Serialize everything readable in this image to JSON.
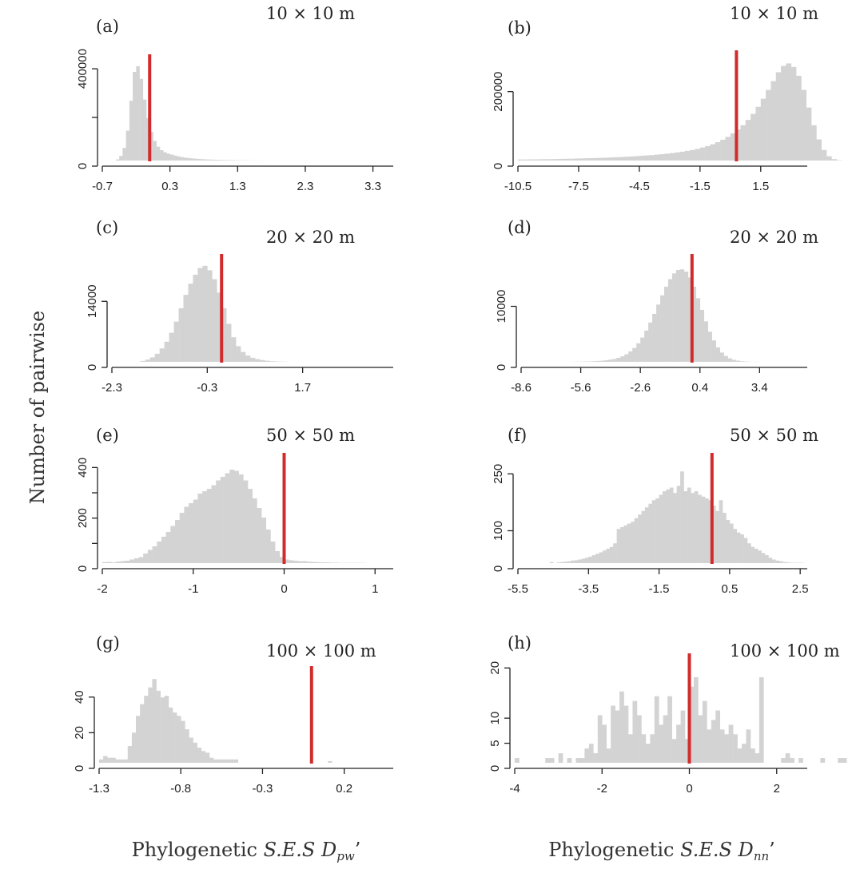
{
  "figure": {
    "ylabel": "Number of pairwise",
    "xlabel_left": {
      "prefix": "Phylogenetic ",
      "stat": "S.E.S D",
      "sub": "pw",
      "suffix": "’"
    },
    "xlabel_right": {
      "prefix": "Phylogenetic ",
      "stat": "S.E.S D",
      "sub": "nn",
      "suffix": "’"
    }
  },
  "colors": {
    "bars": "#d3d3d3",
    "observed_line": "#d22b2b",
    "axis": "#222222"
  },
  "chart_data": [
    {
      "id": "a",
      "type": "bar",
      "panel_label": "(a)",
      "scale_label": "10 × 10 m",
      "xlim": [
        -0.7,
        3.6
      ],
      "ylim": [
        0,
        420000
      ],
      "xticks": [
        -0.7,
        0.3,
        1.3,
        2.3,
        3.3
      ],
      "xtick_labels": [
        "-0.7",
        "0.3",
        "1.3",
        "2.3",
        "3.3"
      ],
      "yticks": [
        0,
        200000,
        400000
      ],
      "ytick_labels": [
        "0",
        "",
        "400000"
      ],
      "observed": 0.0,
      "bin_start": -0.5,
      "bin_width": 0.05,
      "counts": [
        5000,
        20000,
        55000,
        130000,
        260000,
        385000,
        410000,
        355000,
        265000,
        185000,
        125000,
        85000,
        60000,
        45000,
        36000,
        30000,
        26000,
        22000,
        18000,
        15000,
        12500,
        11000,
        9500,
        8200,
        7000,
        6000,
        5200,
        4500,
        4000,
        3500,
        3000,
        2600,
        2200,
        1900,
        1600,
        1400,
        1200,
        1000,
        800,
        650,
        500,
        400,
        320,
        250,
        200,
        150,
        120,
        100,
        80,
        60,
        50
      ]
    },
    {
      "id": "b",
      "type": "bar",
      "panel_label": "(b)",
      "scale_label": "10 × 10 m",
      "xlim": [
        -10.5,
        3.8
      ],
      "ylim": [
        0,
        285000
      ],
      "xticks": [
        -10.5,
        -7.5,
        -4.5,
        -1.5,
        1.5
      ],
      "xtick_labels": [
        "-10.5",
        "-7.5",
        "-4.5",
        "-1.5",
        "1.5"
      ],
      "yticks": [
        0,
        200000
      ],
      "ytick_labels": [
        "0",
        "200000"
      ],
      "observed": 0.3,
      "bin_start": -10.5,
      "bin_width": 0.25,
      "counts": [
        3000,
        3000,
        3200,
        3400,
        3600,
        3800,
        4000,
        4300,
        4600,
        4900,
        5200,
        5600,
        6000,
        6400,
        6800,
        7200,
        7700,
        8200,
        8800,
        9400,
        10000,
        10800,
        11600,
        12500,
        13500,
        14500,
        15500,
        16800,
        18000,
        19500,
        21000,
        23000,
        25000,
        27500,
        30000,
        33000,
        37000,
        41000,
        46000,
        52000,
        59000,
        67000,
        77000,
        88000,
        100000,
        115000,
        132000,
        152000,
        175000,
        200000,
        225000,
        250000,
        268000,
        275000,
        265000,
        240000,
        200000,
        150000,
        100000,
        60000,
        30000,
        12000,
        4000,
        1000
      ]
    },
    {
      "id": "c",
      "type": "bar",
      "panel_label": "(c)",
      "scale_label": "20 × 20 m",
      "xlim": [
        -2.3,
        3.6
      ],
      "ylim": [
        0,
        22000
      ],
      "xticks": [
        -2.3,
        -0.3,
        1.7
      ],
      "xtick_labels": [
        "-2.3",
        "-0.3",
        "1.7"
      ],
      "yticks": [
        0,
        14000
      ],
      "ytick_labels": [
        "0",
        "14000"
      ],
      "observed": 0.0,
      "bin_start": -1.7,
      "bin_width": 0.1,
      "counts": [
        200,
        500,
        1000,
        1800,
        3000,
        4500,
        6500,
        9000,
        12000,
        15000,
        17500,
        19500,
        21000,
        21500,
        20500,
        18500,
        15500,
        12000,
        8500,
        5500,
        3500,
        2200,
        1400,
        900,
        600,
        400,
        250,
        150,
        100,
        60,
        30
      ]
    },
    {
      "id": "d",
      "type": "bar",
      "panel_label": "(d)",
      "scale_label": "20 × 20 m",
      "xlim": [
        -8.6,
        5.8
      ],
      "ylim": [
        0,
        17000
      ],
      "xticks": [
        -8.6,
        -5.6,
        -2.6,
        0.4,
        3.4
      ],
      "xtick_labels": [
        "-8.6",
        "-5.6",
        "-2.6",
        "0.4",
        "3.4"
      ],
      "yticks": [
        0,
        10000
      ],
      "ytick_labels": [
        "0",
        "10000"
      ],
      "observed": 0.0,
      "bin_start": -6.0,
      "bin_width": 0.2,
      "counts": [
        20,
        30,
        40,
        60,
        80,
        110,
        150,
        200,
        280,
        380,
        500,
        700,
        950,
        1300,
        1800,
        2400,
        3200,
        4200,
        5400,
        6800,
        8300,
        9900,
        11500,
        13000,
        14300,
        15300,
        15900,
        16000,
        15600,
        14600,
        13000,
        11000,
        9000,
        7000,
        5200,
        3700,
        2500,
        1600,
        1000,
        600,
        350,
        200,
        110,
        60,
        30,
        15,
        8,
        4
      ]
    },
    {
      "id": "e",
      "type": "bar",
      "panel_label": "(e)",
      "scale_label": "50 × 50 m",
      "xlim": [
        -2,
        1.2
      ],
      "ylim": [
        0,
        420
      ],
      "xticks": [
        -2,
        -1,
        0,
        1
      ],
      "xtick_labels": [
        "-2",
        "-1",
        "0",
        "1"
      ],
      "yticks": [
        0,
        100,
        200,
        300,
        400
      ],
      "ytick_labels": [
        "0",
        "",
        "200",
        "",
        "400"
      ],
      "observed": 0.0,
      "bin_start": -2.0,
      "bin_width": 0.05,
      "counts": [
        4,
        5,
        3,
        6,
        8,
        10,
        15,
        20,
        25,
        40,
        55,
        70,
        90,
        110,
        130,
        155,
        180,
        210,
        235,
        250,
        265,
        290,
        300,
        310,
        325,
        345,
        360,
        375,
        390,
        385,
        370,
        345,
        310,
        270,
        230,
        190,
        140,
        90,
        50,
        25,
        15,
        12,
        10,
        8,
        8,
        6,
        5,
        4,
        3,
        3,
        2,
        2,
        1,
        1,
        1,
        1,
        1,
        1,
        0,
        0,
        0,
        0,
        0,
        0
      ]
    },
    {
      "id": "f",
      "type": "bar",
      "panel_label": "(f)",
      "scale_label": "50 × 50 m",
      "xlim": [
        -5.5,
        2.7
      ],
      "ylim": [
        0,
        280
      ],
      "xticks": [
        -5.5,
        -3.5,
        -1.5,
        0.5,
        2.5
      ],
      "xtick_labels": [
        "-5.5",
        "-3.5",
        "-1.5",
        "0.5",
        "2.5"
      ],
      "yticks": [
        0,
        100,
        250
      ],
      "ytick_labels": [
        "0",
        "100",
        "250"
      ],
      "observed": 0.0,
      "bin_start": -5.5,
      "bin_width": 0.1,
      "counts": [
        0,
        0,
        0,
        0,
        0,
        0,
        0,
        0,
        0,
        3,
        0,
        2,
        3,
        4,
        5,
        7,
        8,
        10,
        12,
        15,
        18,
        22,
        26,
        30,
        35,
        40,
        45,
        55,
        95,
        100,
        105,
        110,
        115,
        125,
        135,
        145,
        155,
        165,
        175,
        180,
        190,
        200,
        205,
        210,
        195,
        215,
        255,
        200,
        210,
        195,
        200,
        190,
        185,
        180,
        175,
        160,
        145,
        175,
        140,
        120,
        110,
        95,
        85,
        80,
        70,
        55,
        45,
        40,
        35,
        28,
        22,
        15,
        10,
        7,
        5,
        3,
        2,
        1,
        1,
        1,
        1,
        0
      ]
    },
    {
      "id": "g",
      "type": "bar",
      "panel_label": "(g)",
      "scale_label": "100 × 100 m",
      "xlim": [
        -1.3,
        0.5
      ],
      "ylim": [
        0,
        52
      ],
      "xticks": [
        -1.3,
        -0.8,
        -0.3,
        0.2
      ],
      "xtick_labels": [
        "-1.3",
        "-0.8",
        "-0.3",
        "0.2"
      ],
      "yticks": [
        0,
        20,
        40
      ],
      "ytick_labels": [
        "0",
        "20",
        "40"
      ],
      "observed": 0.0,
      "bin_start": -1.3,
      "bin_width": 0.025,
      "counts": [
        2,
        4,
        3,
        3,
        2,
        2,
        2,
        10,
        18,
        28,
        35,
        40,
        45,
        50,
        43,
        39,
        40,
        33,
        30,
        28,
        25,
        20,
        15,
        12,
        9,
        7,
        6,
        3,
        2,
        2,
        2,
        2,
        2,
        2,
        0,
        0,
        0,
        0,
        0,
        0,
        0,
        0,
        0,
        0,
        0,
        0,
        0,
        0,
        0,
        0,
        0,
        0,
        0,
        0,
        0,
        0,
        1,
        0,
        0,
        0,
        0,
        0,
        0,
        0,
        0,
        0,
        0,
        0,
        0,
        0,
        0,
        0
      ]
    },
    {
      "id": "h",
      "type": "bar",
      "panel_label": "(h)",
      "scale_label": "100 × 100 m",
      "xlim": [
        -4,
        2.7
      ],
      "ylim": [
        0,
        21
      ],
      "xticks": [
        -4,
        -2,
        0,
        2
      ],
      "xtick_labels": [
        "-4",
        "-2",
        "0",
        "2"
      ],
      "yticks": [
        0,
        5,
        10,
        20
      ],
      "ytick_labels": [
        "0",
        "5",
        "10",
        "20"
      ],
      "observed": 0.0,
      "bin_start": -4.0,
      "bin_width": 0.1,
      "counts": [
        1,
        0,
        0,
        0,
        0,
        0,
        0,
        1,
        1,
        0,
        2,
        0,
        1,
        0,
        1,
        1,
        3,
        4,
        2,
        10,
        8,
        3,
        12,
        11,
        15,
        12,
        6,
        13,
        10,
        6,
        4,
        6,
        14,
        8,
        10,
        14,
        5,
        8,
        11,
        5,
        16,
        18,
        10,
        13,
        7,
        9,
        11,
        7,
        6,
        8,
        6,
        3,
        4,
        7,
        3,
        2,
        18,
        0,
        0,
        0,
        0,
        1,
        2,
        1,
        0,
        1,
        0,
        0,
        0,
        0,
        1,
        0,
        0,
        0,
        1,
        1,
        0,
        0,
        0,
        0,
        0,
        0,
        0,
        0,
        0,
        0,
        0,
        1,
        0,
        0,
        0,
        0,
        0,
        0,
        0,
        0,
        0,
        0,
        0,
        0,
        0,
        0,
        0,
        0,
        0,
        0,
        0
      ]
    }
  ]
}
